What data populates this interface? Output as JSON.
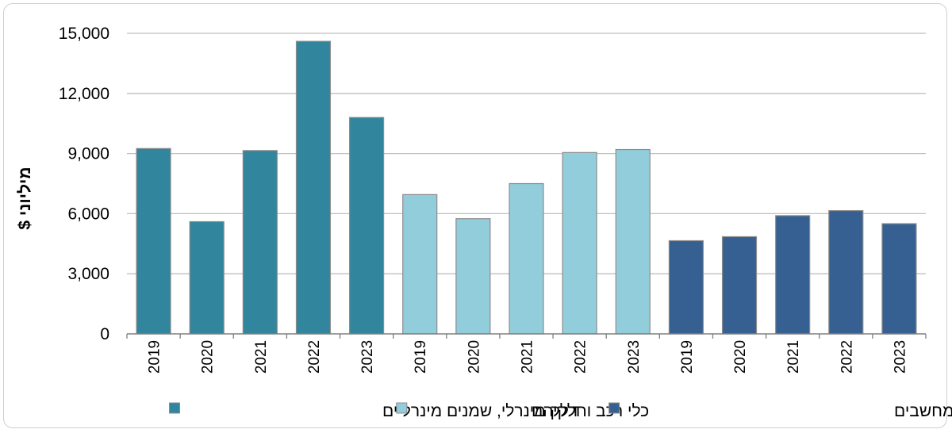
{
  "chart_data": {
    "type": "bar",
    "ylabel": "מיליוני $",
    "ylim": [
      0,
      15000
    ],
    "yticks": [
      0,
      3000,
      6000,
      9000,
      12000,
      15000
    ],
    "ytick_labels": [
      "0",
      "3,000",
      "6,000",
      "9,000",
      "12,000",
      "15,000"
    ],
    "grid": true,
    "legend_position": "bottom",
    "categories": [
      "2019",
      "2020",
      "2021",
      "2022",
      "2023"
    ],
    "series": [
      {
        "name": "דלק מינרלי, שמנים מינרליים",
        "color": "#31859c",
        "values": [
          9250,
          5600,
          9150,
          14600,
          10800
        ]
      },
      {
        "name": "כלי רכב וחלקיהם",
        "color": "#92cddc",
        "values": [
          6950,
          5750,
          7500,
          9050,
          9200
        ]
      },
      {
        "name": "מכונות ומכשירים מכניים וציוד מחשבים",
        "color": "#366092",
        "values": [
          4650,
          4850,
          5900,
          6150,
          5500
        ]
      }
    ]
  }
}
